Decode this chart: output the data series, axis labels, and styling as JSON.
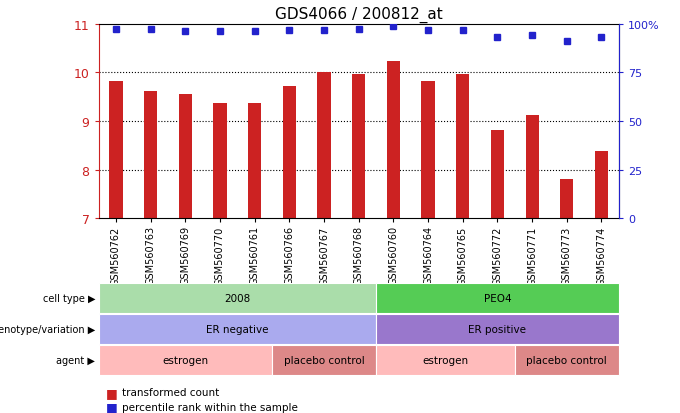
{
  "title": "GDS4066 / 200812_at",
  "samples": [
    "GSM560762",
    "GSM560763",
    "GSM560769",
    "GSM560770",
    "GSM560761",
    "GSM560766",
    "GSM560767",
    "GSM560768",
    "GSM560760",
    "GSM560764",
    "GSM560765",
    "GSM560772",
    "GSM560771",
    "GSM560773",
    "GSM560774"
  ],
  "bar_values": [
    9.83,
    9.62,
    9.55,
    9.38,
    9.38,
    9.73,
    10.02,
    9.97,
    10.23,
    9.82,
    9.97,
    8.82,
    9.12,
    7.82,
    8.38
  ],
  "percentile_values": [
    97.5,
    97.5,
    96.25,
    96.5,
    96.25,
    97.0,
    97.0,
    97.5,
    98.75,
    97.0,
    97.0,
    93.0,
    94.5,
    91.25,
    93.0
  ],
  "ylim_left": [
    7,
    11
  ],
  "ylim_right": [
    0,
    100
  ],
  "yticks_left": [
    7,
    8,
    9,
    10,
    11
  ],
  "yticks_right": [
    0,
    25,
    50,
    75,
    100
  ],
  "ytick_labels_right": [
    "0",
    "25",
    "50",
    "75",
    "100%"
  ],
  "bar_color": "#cc2222",
  "percentile_color": "#2222cc",
  "cell_type_groups": [
    {
      "label": "2008",
      "start": 0,
      "end": 8,
      "color": "#aaddaa"
    },
    {
      "label": "PEO4",
      "start": 8,
      "end": 15,
      "color": "#55cc55"
    }
  ],
  "genotype_groups": [
    {
      "label": "ER negative",
      "start": 0,
      "end": 8,
      "color": "#aaaaee"
    },
    {
      "label": "ER positive",
      "start": 8,
      "end": 15,
      "color": "#9977cc"
    }
  ],
  "agent_groups": [
    {
      "label": "estrogen",
      "start": 0,
      "end": 5,
      "color": "#ffbbbb"
    },
    {
      "label": "placebo control",
      "start": 5,
      "end": 8,
      "color": "#dd8888"
    },
    {
      "label": "estrogen",
      "start": 8,
      "end": 12,
      "color": "#ffbbbb"
    },
    {
      "label": "placebo control",
      "start": 12,
      "end": 15,
      "color": "#dd8888"
    }
  ],
  "legend_bar_label": "transformed count",
  "legend_dot_label": "percentile rank within the sample",
  "background_color": "#ffffff",
  "fig_width": 6.8,
  "fig_height": 4.14,
  "dpi": 100
}
